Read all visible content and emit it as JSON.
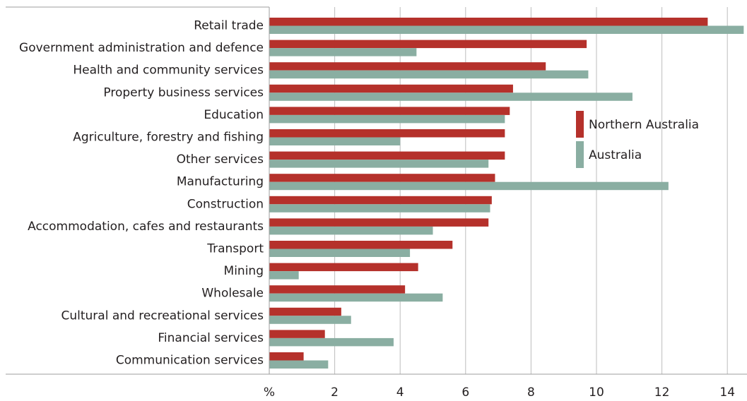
{
  "chart_data": {
    "type": "bar",
    "orientation": "horizontal",
    "title": "",
    "xlabel": "",
    "ylabel": "",
    "unit_label": "%",
    "categories": [
      "Retail trade",
      "Government administration and defence",
      "Health and community services",
      "Property business services",
      "Education",
      "Agriculture, forestry and fishing",
      "Other services",
      "Manufacturing",
      "Construction",
      "Accommodation, cafes and restaurants",
      "Transport",
      "Mining",
      "Wholesale",
      "Cultural and recreational services",
      "Financial services",
      "Communication services"
    ],
    "series": [
      {
        "name": "Northern Australia",
        "color": "#b5312b",
        "values": [
          13.4,
          9.7,
          8.45,
          7.45,
          7.35,
          7.2,
          7.2,
          6.9,
          6.8,
          6.7,
          5.6,
          4.55,
          4.15,
          2.2,
          1.7,
          1.05
        ]
      },
      {
        "name": "Australia",
        "color": "#8aaea2",
        "values": [
          14.5,
          4.5,
          9.75,
          11.1,
          7.2,
          4.0,
          6.7,
          12.2,
          6.75,
          5.0,
          4.3,
          0.9,
          5.3,
          2.5,
          3.8,
          1.8
        ]
      }
    ],
    "xlim": [
      0,
      14.5
    ],
    "xticks": [
      "%",
      "2",
      "4",
      "6",
      "8",
      "10",
      "12",
      "14"
    ],
    "xtick_values": [
      0,
      2,
      4,
      6,
      8,
      10,
      12,
      14
    ],
    "grid": "vertical",
    "legend_position": "right, inside plot"
  }
}
